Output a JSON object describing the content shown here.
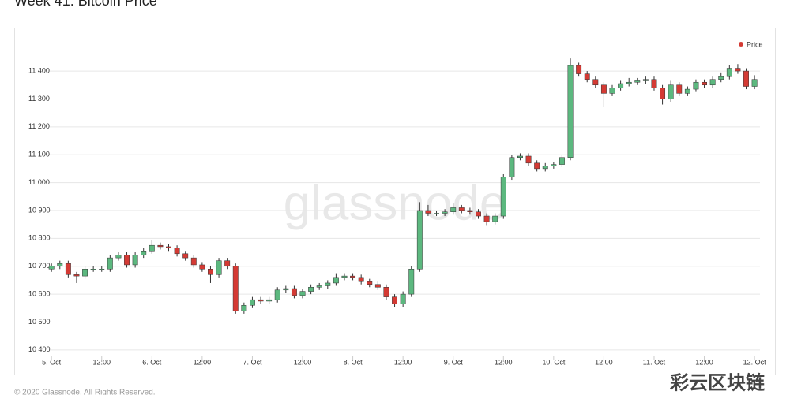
{
  "chart_data": {
    "type": "candlestick",
    "title": "Week 41: Bitcoin Price",
    "watermark": "glassnode",
    "footer": "© 2020 Glassnode. All Rights Reserved.",
    "overlay_text": "彩云区块链",
    "legend": "top-right",
    "grid": true,
    "up_color": "#5cb87f",
    "down_color": "#d43a34",
    "x": [
      0,
      2,
      4,
      6,
      8,
      10,
      12,
      14,
      16,
      18,
      20,
      22,
      24,
      26,
      28,
      30,
      32,
      34,
      36,
      38,
      40,
      42,
      44,
      46,
      48,
      50,
      52,
      54,
      56,
      58,
      60,
      62,
      64,
      66,
      68,
      70,
      72,
      74,
      76,
      78,
      80,
      82,
      84,
      86,
      88,
      90,
      92,
      94,
      96,
      98,
      100,
      102,
      104,
      106,
      108,
      110,
      112,
      114,
      116,
      118,
      120,
      122,
      124,
      126,
      128,
      130,
      132,
      134,
      136,
      138,
      140,
      142,
      144,
      146,
      148,
      150,
      152,
      154,
      156,
      158,
      160,
      162,
      164,
      166,
      168
    ],
    "series": [
      {
        "name": "Price",
        "color": "#d43a34",
        "open": [
          10690,
          10700,
          10710,
          10670,
          10665,
          10690,
          10690,
          10690,
          10730,
          10740,
          10705,
          10740,
          10755,
          10775,
          10770,
          10765,
          10745,
          10730,
          10705,
          10690,
          10670,
          10720,
          10700,
          10540,
          10560,
          10580,
          10575,
          10580,
          10615,
          10620,
          10595,
          10610,
          10625,
          10630,
          10640,
          10660,
          10665,
          10660,
          10645,
          10635,
          10625,
          10590,
          10565,
          10600,
          10690,
          10900,
          10890,
          10890,
          10895,
          10910,
          10900,
          10895,
          10880,
          10860,
          10880,
          11020,
          11090,
          11095,
          11070,
          11050,
          11060,
          11065,
          11090,
          11420,
          11390,
          11370,
          11350,
          11320,
          11340,
          11355,
          11360,
          11365,
          11370,
          11340,
          11300,
          11350,
          11320,
          11335,
          11360,
          11350,
          11370,
          11380,
          11410,
          11400,
          11345
        ],
        "high": [
          10710,
          10720,
          10720,
          10680,
          10700,
          10700,
          10700,
          10740,
          10750,
          10750,
          10750,
          10765,
          10795,
          10785,
          10780,
          10775,
          10755,
          10740,
          10715,
          10700,
          10730,
          10730,
          10710,
          10570,
          10590,
          10590,
          10590,
          10625,
          10630,
          10630,
          10620,
          10635,
          10640,
          10650,
          10675,
          10675,
          10675,
          10670,
          10655,
          10645,
          10635,
          10600,
          10610,
          10700,
          10930,
          10920,
          10900,
          10905,
          10925,
          10920,
          10910,
          10905,
          10890,
          10890,
          11030,
          11100,
          11105,
          11105,
          11080,
          11070,
          11075,
          11100,
          11445,
          11430,
          11400,
          11380,
          11360,
          11350,
          11365,
          11375,
          11375,
          11380,
          11380,
          11350,
          11365,
          11360,
          11345,
          11370,
          11370,
          11380,
          11395,
          11420,
          11425,
          11410,
          11385
        ],
        "low": [
          10680,
          10690,
          10660,
          10640,
          10655,
          10680,
          10680,
          10680,
          10720,
          10695,
          10695,
          10730,
          10745,
          10760,
          10755,
          10735,
          10720,
          10695,
          10680,
          10640,
          10660,
          10690,
          10530,
          10530,
          10550,
          10565,
          10565,
          10570,
          10605,
          10585,
          10585,
          10600,
          10615,
          10620,
          10630,
          10650,
          10650,
          10635,
          10625,
          10615,
          10580,
          10555,
          10555,
          10590,
          10680,
          10880,
          10880,
          10880,
          10885,
          10890,
          10885,
          10870,
          10845,
          10850,
          10870,
          11010,
          11080,
          11060,
          11040,
          11040,
          11050,
          11055,
          11080,
          11380,
          11360,
          11340,
          11270,
          11310,
          11330,
          11345,
          11350,
          11355,
          11330,
          11280,
          11290,
          11310,
          11310,
          11325,
          11340,
          11340,
          11360,
          11370,
          11390,
          11335,
          11335
        ],
        "close": [
          10700,
          10710,
          10670,
          10665,
          10690,
          10690,
          10690,
          10730,
          10740,
          10705,
          10740,
          10755,
          10775,
          10770,
          10765,
          10745,
          10730,
          10705,
          10690,
          10670,
          10720,
          10700,
          10540,
          10560,
          10580,
          10575,
          10580,
          10615,
          10620,
          10595,
          10610,
          10625,
          10630,
          10640,
          10660,
          10665,
          10660,
          10645,
          10635,
          10625,
          10590,
          10565,
          10600,
          10690,
          10900,
          10890,
          10890,
          10895,
          10910,
          10900,
          10895,
          10880,
          10860,
          10880,
          11020,
          11090,
          11095,
          11070,
          11050,
          11060,
          11065,
          11090,
          11420,
          11390,
          11370,
          11350,
          11320,
          11340,
          11355,
          11360,
          11365,
          11370,
          11340,
          11300,
          11350,
          11320,
          11335,
          11360,
          11350,
          11370,
          11380,
          11410,
          11400,
          11345,
          11370
        ]
      }
    ],
    "xlim": [
      -0.6,
      169.3
    ],
    "xticks": [
      {
        "value": 0,
        "label": "5. Oct"
      },
      {
        "value": 12,
        "label": "12:00"
      },
      {
        "value": 24,
        "label": "6. Oct"
      },
      {
        "value": 36,
        "label": "12:00"
      },
      {
        "value": 48,
        "label": "7. Oct"
      },
      {
        "value": 60,
        "label": "12:00"
      },
      {
        "value": 72,
        "label": "8. Oct"
      },
      {
        "value": 84,
        "label": "12:00"
      },
      {
        "value": 96,
        "label": "9. Oct"
      },
      {
        "value": 108,
        "label": "12:00"
      },
      {
        "value": 120,
        "label": "10. Oct"
      },
      {
        "value": 132,
        "label": "12:00"
      },
      {
        "value": 144,
        "label": "11. Oct"
      },
      {
        "value": 156,
        "label": "12:00"
      },
      {
        "value": 168,
        "label": "12. Oct"
      }
    ],
    "ylim": [
      10377,
      11485
    ],
    "yticks": [
      {
        "value": 10400,
        "label": "10 400"
      },
      {
        "value": 10500,
        "label": "10 500"
      },
      {
        "value": 10600,
        "label": "10 600"
      },
      {
        "value": 10700,
        "label": "10 700"
      },
      {
        "value": 10800,
        "label": "10 800"
      },
      {
        "value": 10900,
        "label": "10 900"
      },
      {
        "value": 11000,
        "label": "11 000"
      },
      {
        "value": 11100,
        "label": "11 100"
      },
      {
        "value": 11200,
        "label": "11 200"
      },
      {
        "value": 11300,
        "label": "11 300"
      },
      {
        "value": 11400,
        "label": "11 400"
      }
    ]
  }
}
